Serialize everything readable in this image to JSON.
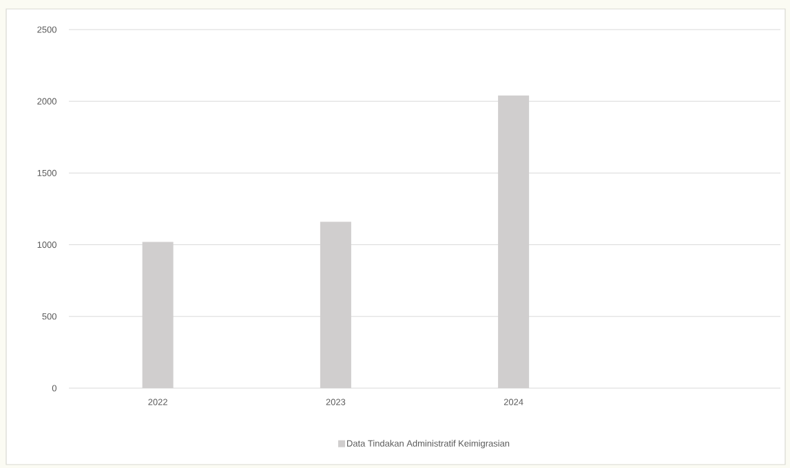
{
  "chart_data": {
    "type": "bar",
    "categories": [
      "2022",
      "2023",
      "2024",
      null
    ],
    "series": [
      {
        "name": "Data Tindakan Administratif Keimigrasian",
        "color": "#d0cece",
        "values": [
          1020,
          1160,
          2040,
          null
        ]
      }
    ],
    "ylim": [
      0,
      2500
    ],
    "yticks": [
      0,
      500,
      1000,
      1500,
      2000,
      2500
    ],
    "grid": "y",
    "legend": "bottom"
  }
}
